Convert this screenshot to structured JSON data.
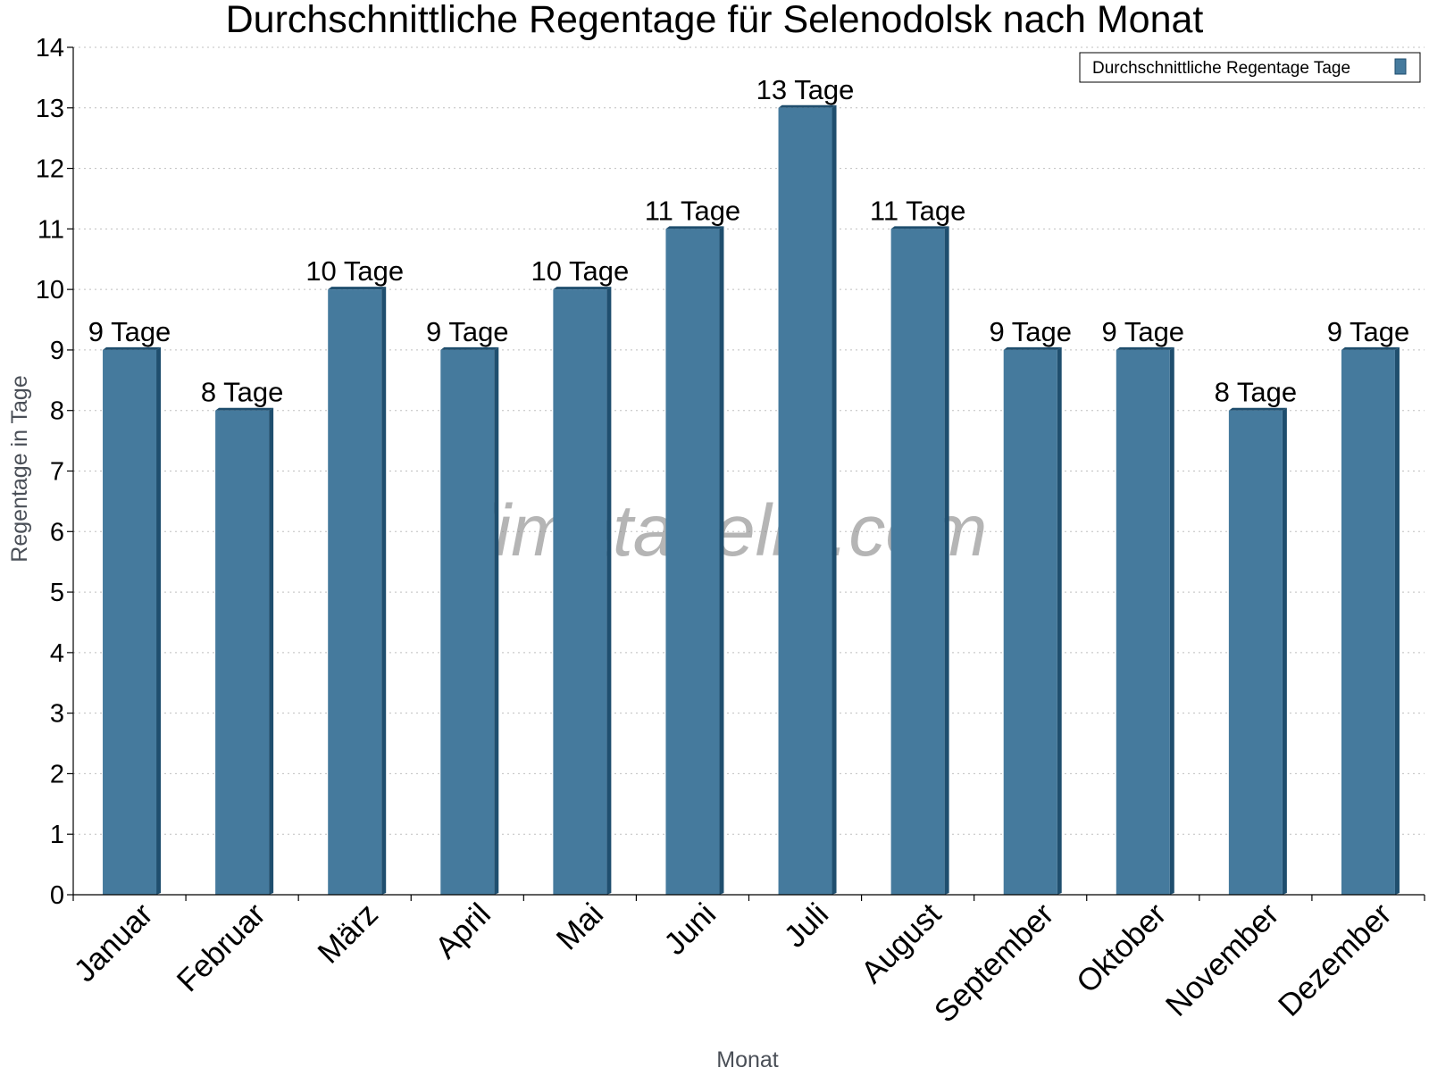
{
  "chart_data": {
    "type": "bar",
    "title": "Durchschnittliche Regentage für Selenodolsk nach Monat",
    "xlabel": "Monat",
    "ylabel": "Regentage in Tage",
    "ylim": [
      0,
      14
    ],
    "yticks": [
      0,
      1,
      2,
      3,
      4,
      5,
      6,
      7,
      8,
      9,
      10,
      11,
      12,
      13,
      14
    ],
    "grid": true,
    "legend_position": "top-right",
    "categories": [
      "Januar",
      "Februar",
      "März",
      "April",
      "Mai",
      "Juni",
      "Juli",
      "August",
      "September",
      "Oktober",
      "November",
      "Dezember"
    ],
    "series": [
      {
        "name": "Durchschnittliche Regentage Tage",
        "color": "#457a9d",
        "values": [
          9,
          8,
          10,
          9,
          10,
          11,
          13,
          11,
          9,
          9,
          8,
          9
        ],
        "labels": [
          "9 Tage",
          "8 Tage",
          "10 Tage",
          "9 Tage",
          "10 Tage",
          "11 Tage",
          "13 Tage",
          "11 Tage",
          "9 Tage",
          "9 Tage",
          "8 Tage",
          "9 Tage"
        ]
      }
    ],
    "watermark": "klimatabelle.com"
  }
}
